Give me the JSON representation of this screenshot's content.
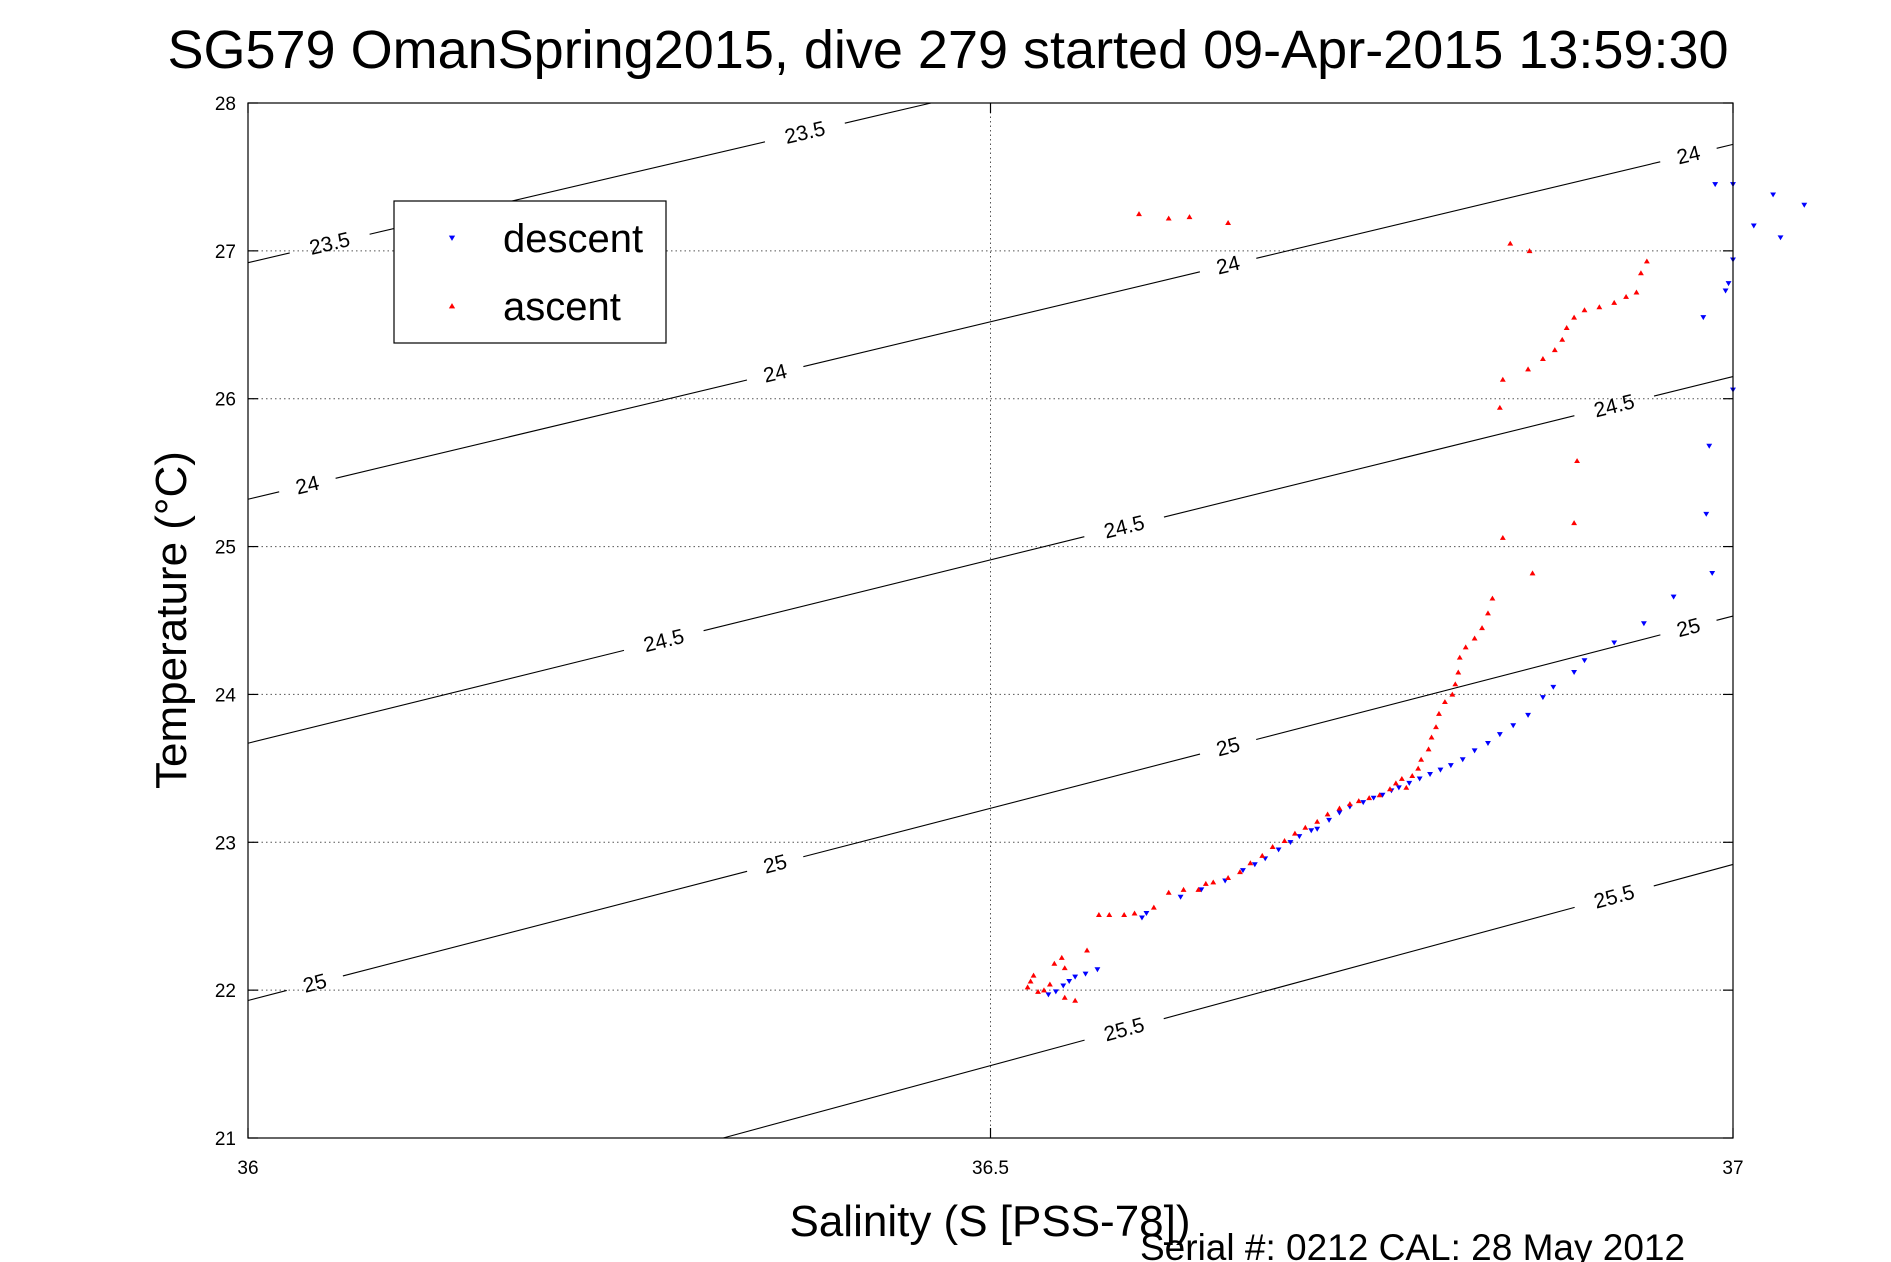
{
  "chart_data": {
    "type": "scatter",
    "title": "SG579 OmanSpring2015, dive 279 started 09-Apr-2015 13:59:30",
    "xlabel": "Salinity (S [PSS-78])",
    "ylabel": "Temperature (°C)",
    "footer": "Serial #: 0212  CAL: 28 May 2012",
    "xlim": [
      36,
      37
    ],
    "ylim": [
      21,
      28
    ],
    "xticks": [
      "36",
      "36.5",
      "37"
    ],
    "yticks": [
      "21",
      "22",
      "23",
      "24",
      "25",
      "26",
      "27",
      "28"
    ],
    "grid": "dotted",
    "legend_position": "top-left",
    "contours": [
      {
        "label": "23.5",
        "ends": [
          [
            36.0,
            26.92
          ],
          [
            36.46,
            28.0
          ]
        ],
        "label_positions": [
          [
            36.055,
            27.0
          ],
          [
            36.375,
            27.72
          ]
        ]
      },
      {
        "label": "24",
        "ends": [
          [
            36.0,
            25.32
          ],
          [
            37.0,
            27.72
          ]
        ],
        "label_positions": [
          [
            36.04,
            25.38
          ],
          [
            36.355,
            26.16
          ],
          [
            36.66,
            26.93
          ],
          [
            36.97,
            27.64
          ]
        ]
      },
      {
        "label": "24.5",
        "ends": [
          [
            36.0,
            23.67
          ],
          [
            37.0,
            26.15
          ]
        ],
        "label_positions": [
          [
            36.28,
            24.36
          ],
          [
            36.59,
            25.13
          ],
          [
            36.92,
            25.91
          ]
        ]
      },
      {
        "label": "25",
        "ends": [
          [
            36.0,
            21.93
          ],
          [
            37.0,
            24.53
          ]
        ],
        "label_positions": [
          [
            36.045,
            22.0
          ],
          [
            36.355,
            22.85
          ],
          [
            36.66,
            23.65
          ],
          [
            36.97,
            24.44
          ]
        ]
      },
      {
        "label": "25.5",
        "ends": [
          [
            36.32,
            21.0
          ],
          [
            37.0,
            22.85
          ]
        ],
        "label_positions": [
          [
            36.59,
            21.56
          ],
          [
            36.92,
            22.52
          ]
        ]
      }
    ],
    "series": [
      {
        "name": "descent",
        "color": "#0000ff",
        "marker": "triangle-down",
        "points": [
          [
            36.539,
            21.97
          ],
          [
            36.544,
            21.99
          ],
          [
            36.549,
            22.03
          ],
          [
            36.553,
            22.06
          ],
          [
            36.557,
            22.09
          ],
          [
            36.564,
            22.11
          ],
          [
            36.572,
            22.14
          ],
          [
            36.602,
            22.49
          ],
          [
            36.605,
            22.52
          ],
          [
            36.628,
            22.63
          ],
          [
            36.642,
            22.68
          ],
          [
            36.658,
            22.74
          ],
          [
            36.67,
            22.81
          ],
          [
            36.678,
            22.85
          ],
          [
            36.685,
            22.89
          ],
          [
            36.694,
            22.95
          ],
          [
            36.702,
            23.0
          ],
          [
            36.708,
            23.04
          ],
          [
            36.716,
            23.08
          ],
          [
            36.72,
            23.09
          ],
          [
            36.728,
            23.15
          ],
          [
            36.735,
            23.2
          ],
          [
            36.742,
            23.24
          ],
          [
            36.751,
            23.27
          ],
          [
            36.758,
            23.3
          ],
          [
            36.764,
            23.32
          ],
          [
            36.77,
            23.35
          ],
          [
            36.775,
            23.37
          ],
          [
            36.782,
            23.4
          ],
          [
            36.789,
            23.43
          ],
          [
            36.796,
            23.46
          ],
          [
            36.803,
            23.49
          ],
          [
            36.81,
            23.52
          ],
          [
            36.818,
            23.56
          ],
          [
            36.826,
            23.62
          ],
          [
            36.835,
            23.67
          ],
          [
            36.843,
            23.73
          ],
          [
            36.852,
            23.79
          ],
          [
            36.862,
            23.86
          ],
          [
            36.872,
            23.98
          ],
          [
            36.879,
            24.05
          ],
          [
            36.893,
            24.15
          ],
          [
            36.9,
            24.23
          ],
          [
            36.92,
            24.35
          ],
          [
            36.94,
            24.48
          ],
          [
            36.96,
            24.66
          ],
          [
            36.986,
            24.82
          ],
          [
            36.982,
            25.22
          ],
          [
            36.984,
            25.68
          ],
          [
            37.0,
            26.06
          ],
          [
            36.98,
            26.55
          ],
          [
            36.995,
            26.73
          ],
          [
            36.997,
            26.78
          ],
          [
            37.0,
            26.94
          ],
          [
            37.014,
            27.17
          ],
          [
            37.027,
            27.38
          ],
          [
            37.0,
            27.45
          ],
          [
            36.988,
            27.45
          ],
          [
            37.032,
            27.09
          ],
          [
            37.048,
            27.31
          ]
        ]
      },
      {
        "name": "ascent",
        "color": "#ff0000",
        "marker": "triangle-up",
        "points": [
          [
            36.525,
            22.02
          ],
          [
            36.527,
            22.06
          ],
          [
            36.529,
            22.1
          ],
          [
            36.532,
            21.99
          ],
          [
            36.536,
            22.0
          ],
          [
            36.54,
            22.04
          ],
          [
            36.543,
            22.18
          ],
          [
            36.548,
            22.22
          ],
          [
            36.55,
            22.15
          ],
          [
            36.55,
            21.95
          ],
          [
            36.557,
            21.93
          ],
          [
            36.565,
            22.27
          ],
          [
            36.573,
            22.51
          ],
          [
            36.58,
            22.51
          ],
          [
            36.59,
            22.51
          ],
          [
            36.597,
            22.52
          ],
          [
            36.61,
            22.56
          ],
          [
            36.62,
            22.66
          ],
          [
            36.63,
            22.68
          ],
          [
            36.64,
            22.68
          ],
          [
            36.645,
            22.72
          ],
          [
            36.65,
            22.73
          ],
          [
            36.66,
            22.76
          ],
          [
            36.668,
            22.8
          ],
          [
            36.675,
            22.86
          ],
          [
            36.683,
            22.91
          ],
          [
            36.69,
            22.97
          ],
          [
            36.698,
            23.01
          ],
          [
            36.705,
            23.06
          ],
          [
            36.712,
            23.1
          ],
          [
            36.72,
            23.14
          ],
          [
            36.727,
            23.19
          ],
          [
            36.735,
            23.23
          ],
          [
            36.742,
            23.26
          ],
          [
            36.748,
            23.28
          ],
          [
            36.755,
            23.3
          ],
          [
            36.762,
            23.32
          ],
          [
            36.769,
            23.36
          ],
          [
            36.773,
            23.4
          ],
          [
            36.777,
            23.43
          ],
          [
            36.78,
            23.37
          ],
          [
            36.784,
            23.45
          ],
          [
            36.788,
            23.5
          ],
          [
            36.79,
            23.56
          ],
          [
            36.795,
            23.63
          ],
          [
            36.797,
            23.71
          ],
          [
            36.8,
            23.78
          ],
          [
            36.802,
            23.87
          ],
          [
            36.806,
            23.95
          ],
          [
            36.811,
            24.0
          ],
          [
            36.813,
            24.07
          ],
          [
            36.815,
            24.15
          ],
          [
            36.816,
            24.25
          ],
          [
            36.82,
            24.32
          ],
          [
            36.826,
            24.38
          ],
          [
            36.831,
            24.45
          ],
          [
            36.835,
            24.55
          ],
          [
            36.838,
            24.65
          ],
          [
            36.845,
            25.06
          ],
          [
            36.865,
            24.82
          ],
          [
            36.893,
            25.16
          ],
          [
            36.895,
            25.58
          ],
          [
            36.843,
            25.94
          ],
          [
            36.845,
            26.13
          ],
          [
            36.862,
            26.2
          ],
          [
            36.872,
            26.27
          ],
          [
            36.88,
            26.33
          ],
          [
            36.885,
            26.4
          ],
          [
            36.888,
            26.48
          ],
          [
            36.893,
            26.55
          ],
          [
            36.9,
            26.6
          ],
          [
            36.91,
            26.62
          ],
          [
            36.92,
            26.65
          ],
          [
            36.928,
            26.69
          ],
          [
            36.935,
            26.72
          ],
          [
            36.938,
            26.85
          ],
          [
            36.942,
            26.93
          ],
          [
            36.85,
            27.05
          ],
          [
            36.863,
            27.0
          ],
          [
            36.6,
            27.25
          ],
          [
            36.62,
            27.22
          ],
          [
            36.634,
            27.23
          ],
          [
            36.66,
            27.19
          ]
        ]
      }
    ]
  }
}
